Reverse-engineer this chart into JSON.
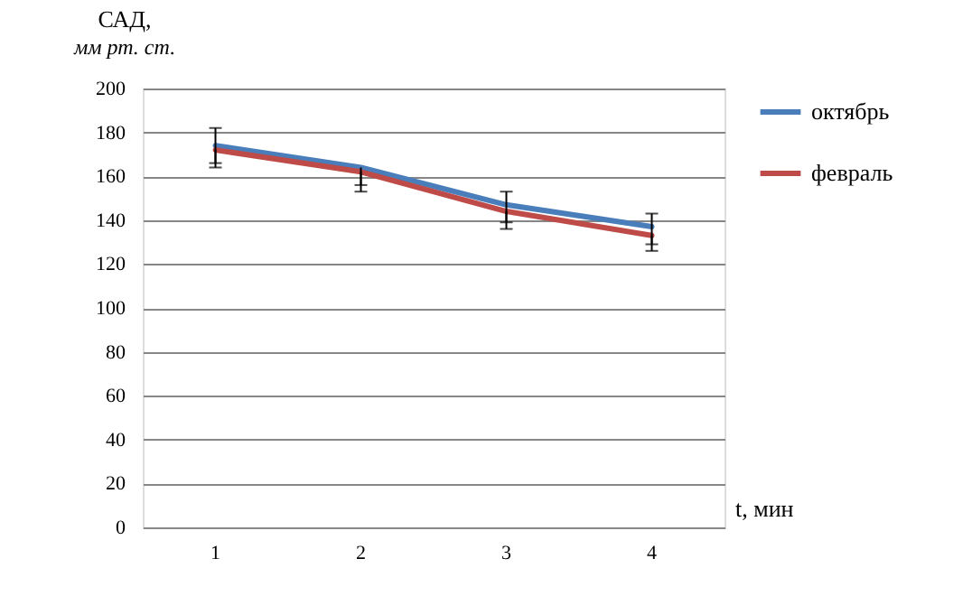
{
  "chart_data": {
    "type": "line",
    "ylabel": "САД,\nмм рт. ст.",
    "xlabel": "t, мин",
    "categories": [
      "1",
      "2",
      "3",
      "4"
    ],
    "series": [
      {
        "name": "октябрь",
        "color": "#4a7ebb",
        "values": [
          174,
          164,
          147,
          137
        ],
        "errors": [
          [
            166,
            182
          ],
          [
            156,
            164
          ],
          [
            139,
            153
          ],
          [
            129,
            143
          ]
        ]
      },
      {
        "name": "февраль",
        "color": "#be4b48",
        "values": [
          172,
          162,
          144,
          133
        ],
        "errors": [
          [
            164,
            172
          ],
          [
            153,
            162
          ],
          [
            136,
            144
          ],
          [
            126,
            133
          ]
        ]
      }
    ],
    "ylim": [
      0,
      200
    ],
    "yticks": [
      0,
      20,
      40,
      60,
      80,
      100,
      120,
      140,
      160,
      180,
      200
    ],
    "grid": "y",
    "legend": "right",
    "marker": "none",
    "line_style": "solid"
  }
}
